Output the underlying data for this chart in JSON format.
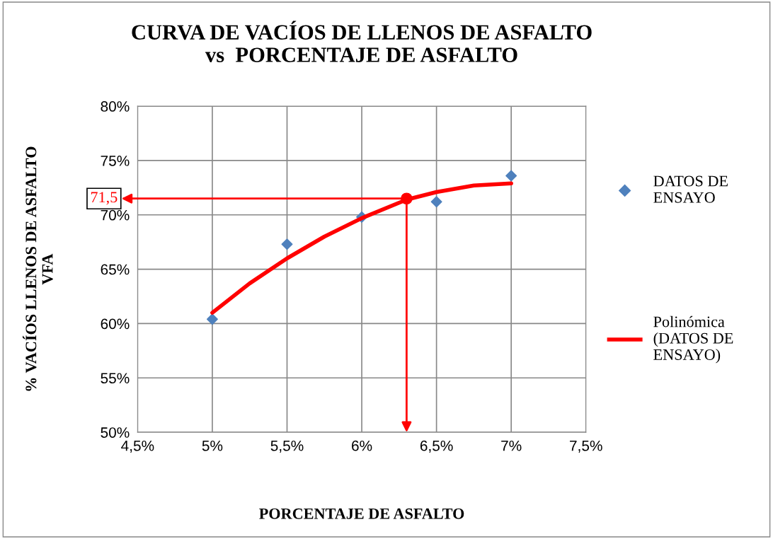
{
  "chart_data": {
    "type": "scatter",
    "title": "CURVA DE VACÍOS DE LLENOS DE ASFALTO\nvs  PORCENTAJE DE ASFALTO",
    "xlabel": "PORCENTAJE DE ASFALTO",
    "ylabel": "% VACÍOS LLENOS DE ASFALTO\nVFA",
    "x": [
      5.0,
      5.5,
      6.0,
      6.5,
      7.0
    ],
    "series": [
      {
        "name": "DATOS DE\nENSAYO",
        "type": "scatter",
        "color": "#4f81bd",
        "marker": "diamond",
        "values": [
          60.4,
          67.3,
          69.8,
          71.2,
          73.6
        ]
      },
      {
        "name": "Polinómica\n(DATOS DE\nENSAYO)",
        "type": "line",
        "color": "#ff0000",
        "marker": "none",
        "x": [
          5.0,
          5.25,
          5.5,
          5.75,
          6.0,
          6.3,
          6.5,
          6.75,
          7.0
        ],
        "values": [
          61.0,
          63.7,
          66.0,
          68.0,
          69.7,
          71.4,
          72.1,
          72.7,
          72.9
        ]
      }
    ],
    "annotations": [
      {
        "text": "71,5",
        "x": 6.3,
        "y": 71.5
      }
    ],
    "xlim": [
      4.5,
      7.5
    ],
    "xticks": [
      {
        "value": 4.5,
        "label": "4,5%"
      },
      {
        "value": 5,
        "label": "5%"
      },
      {
        "value": 5.5,
        "label": "5,5%"
      },
      {
        "value": 6,
        "label": "6%"
      },
      {
        "value": 6.5,
        "label": "6,5%"
      },
      {
        "value": 7,
        "label": "7%"
      },
      {
        "value": 7.5,
        "label": "7,5%"
      }
    ],
    "ylim": [
      50,
      80
    ],
    "yticks": [
      {
        "value": 50,
        "label": "50%"
      },
      {
        "value": 55,
        "label": "55%"
      },
      {
        "value": 60,
        "label": "60%"
      },
      {
        "value": 65,
        "label": "65%"
      },
      {
        "value": 70,
        "label": "70%"
      },
      {
        "value": 75,
        "label": "75%"
      },
      {
        "value": 80,
        "label": "80%"
      }
    ],
    "grid": true,
    "legend": "right"
  }
}
